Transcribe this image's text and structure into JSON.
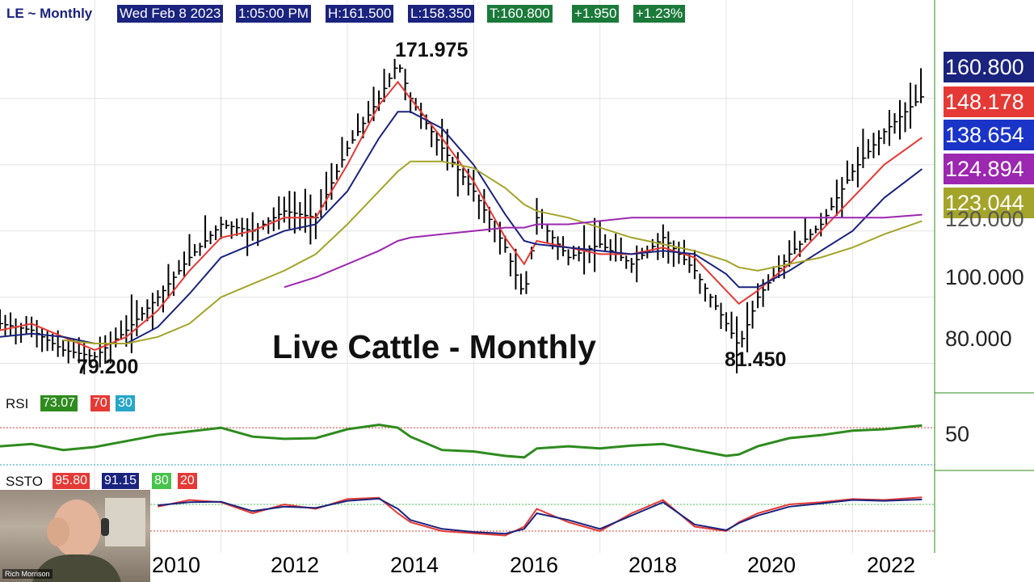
{
  "header": {
    "symbol": "LE ~ Monthly",
    "date": "Wed Feb 8 2023",
    "time": "1:05:00 PM",
    "high": "H:161.500",
    "low": "L:158.350",
    "last": "T:160.800",
    "change": "+1.950",
    "change_pct": "+1.23%"
  },
  "price_tags": [
    "160.800",
    "148.178",
    "138.654",
    "124.894",
    "123.044"
  ],
  "price_axis": [
    "120.000",
    "100.000",
    "80.000"
  ],
  "rsi": {
    "label": "RSI",
    "value": "73.07",
    "upper": "70",
    "lower": "30",
    "axis": "50"
  },
  "ssto": {
    "label": "SSTO",
    "k": "95.80",
    "d": "91.15",
    "upper": "80",
    "lower": "20"
  },
  "years": [
    "2010",
    "2012",
    "2014",
    "2016",
    "2018",
    "2020",
    "2022"
  ],
  "annotations": {
    "high": "171.975",
    "low_2009": "79.200",
    "low_2020": "81.450",
    "title": "Live Cattle - Monthly"
  },
  "webcam": {
    "name": "Rich Morrison"
  },
  "colors": {
    "price_bar": "#000000",
    "ma_fast": "#e53935",
    "ma_mid": "#1a237e",
    "ma_slow": "#a4a42a",
    "ma_long": "#9c27b0",
    "rsi_line": "#2e8b1e",
    "ssto_k": "#e53935",
    "ssto_d": "#1a237e",
    "header_bg": "#1a237e",
    "last_bg": "#1b7a3a"
  },
  "chart_data": {
    "type": "line",
    "title": "Live Cattle - Monthly",
    "x": [
      2008.5,
      2009.0,
      2009.5,
      2010.0,
      2010.5,
      2011.0,
      2011.5,
      2012.0,
      2012.5,
      2013.0,
      2013.5,
      2014.0,
      2014.5,
      2014.8,
      2015.0,
      2015.5,
      2016.0,
      2016.5,
      2016.8,
      2017.0,
      2017.5,
      2018.0,
      2018.5,
      2019.0,
      2019.5,
      2020.0,
      2020.2,
      2020.5,
      2021.0,
      2021.5,
      2022.0,
      2022.5,
      2023.1
    ],
    "series": [
      {
        "values": [
          92,
          90,
          84,
          82,
          90,
          100,
          112,
          122,
          120,
          126,
          124,
          145,
          160,
          171,
          160,
          145,
          132,
          115,
          100,
          124,
          112,
          116,
          110,
          118,
          108,
          92,
          85,
          100,
          113,
          122,
          138,
          150,
          160.8
        ]
      },
      {
        "values": [
          90,
          92,
          88,
          84,
          88,
          96,
          108,
          118,
          120,
          124,
          124,
          140,
          158,
          165,
          160,
          148,
          135,
          118,
          110,
          117,
          115,
          113,
          113,
          115,
          112,
          102,
          98,
          102,
          110,
          120,
          130,
          140,
          148.2
        ]
      },
      {
        "values": [
          88,
          89,
          88,
          86,
          86,
          91,
          101,
          112,
          116,
          120,
          122,
          132,
          148,
          156,
          156,
          151,
          140,
          125,
          117,
          116,
          115,
          114,
          113,
          114,
          113,
          107,
          103,
          103,
          108,
          114,
          120,
          130,
          138.7
        ]
      },
      {
        "values": [
          null,
          null,
          87,
          86,
          86,
          88,
          92,
          100,
          104,
          108,
          113,
          122,
          132,
          138,
          141,
          141,
          139,
          133,
          128,
          126,
          124,
          121,
          118,
          116,
          114,
          111,
          109,
          108,
          110,
          112,
          115,
          119,
          123.0
        ]
      },
      {
        "values": [
          null,
          null,
          null,
          null,
          null,
          null,
          null,
          null,
          null,
          103,
          106,
          110,
          114,
          117,
          118,
          119,
          120,
          121,
          121,
          122,
          122,
          123,
          124,
          124,
          124,
          124,
          124,
          124,
          124,
          124,
          124,
          124,
          124.9
        ]
      }
    ],
    "annotations": [
      "171.975",
      "79.200",
      "81.450"
    ],
    "ylim": [
      75,
      180
    ],
    "xlim": [
      2008.5,
      2023.3
    ],
    "y_ticks": [
      "120.000",
      "100.000",
      "80.000"
    ],
    "x_ticks": [
      "2010",
      "2012",
      "2014",
      "2016",
      "2018",
      "2020",
      "2022"
    ],
    "grid": true,
    "rsi_values": [
      45,
      48,
      40,
      44,
      52,
      60,
      65,
      70,
      58,
      55,
      56,
      68,
      74,
      70,
      58,
      40,
      38,
      32,
      30,
      42,
      45,
      42,
      46,
      48,
      40,
      32,
      34,
      45,
      56,
      60,
      66,
      68,
      73.07
    ],
    "ssto_k_values": [
      40,
      70,
      30,
      60,
      80,
      75,
      90,
      85,
      60,
      80,
      70,
      92,
      95,
      60,
      40,
      20,
      15,
      10,
      30,
      70,
      40,
      20,
      60,
      90,
      30,
      20,
      40,
      60,
      80,
      85,
      92,
      90,
      95.8
    ],
    "ssto_d_values": [
      45,
      60,
      40,
      55,
      75,
      78,
      85,
      86,
      65,
      75,
      72,
      88,
      93,
      70,
      45,
      25,
      18,
      14,
      25,
      60,
      45,
      25,
      55,
      85,
      35,
      22,
      38,
      55,
      75,
      82,
      90,
      88,
      91.15
    ]
  }
}
